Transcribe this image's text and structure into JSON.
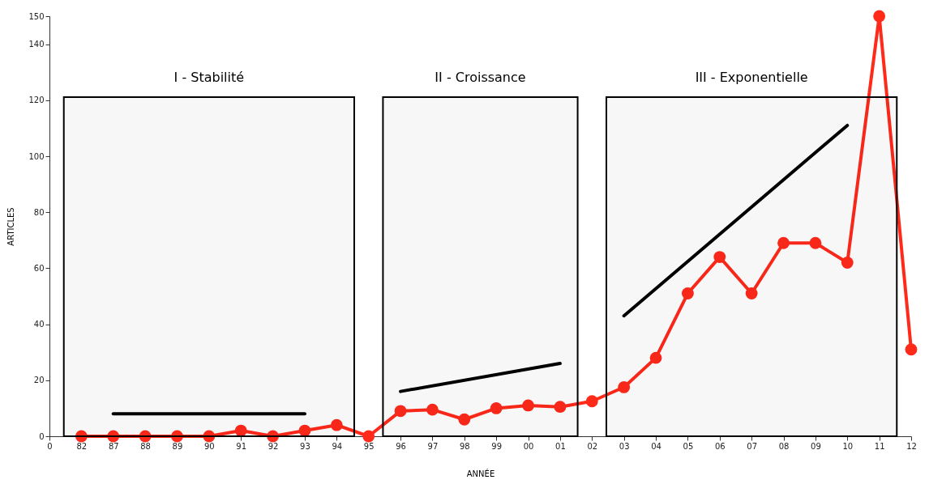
{
  "chart_data": {
    "type": "line",
    "xlabel": "ANNÉE",
    "ylabel": "ARTICLES",
    "categories": [
      "0",
      "82",
      "87",
      "88",
      "89",
      "90",
      "91",
      "92",
      "93",
      "94",
      "95",
      "96",
      "97",
      "98",
      "99",
      "00",
      "01",
      "02",
      "03",
      "04",
      "05",
      "06",
      "07",
      "08",
      "09",
      "10",
      "11",
      "12"
    ],
    "series": [
      {
        "color": "#ff2a1a",
        "marker": "circle",
        "values": [
          null,
          0,
          0,
          0,
          0,
          0,
          2,
          0,
          2,
          4,
          0,
          9,
          9.5,
          6,
          10,
          11,
          10.5,
          12.5,
          17.5,
          28,
          51,
          64,
          51,
          69,
          69,
          62,
          150,
          31
        ]
      },
      {
        "type": "line",
        "color": "#000000",
        "marker": "none",
        "x": [
          "87",
          "93"
        ],
        "values": [
          8,
          8
        ]
      },
      {
        "type": "line",
        "color": "#000000",
        "marker": "none",
        "x": [
          "96",
          "01"
        ],
        "values": [
          16,
          26
        ]
      },
      {
        "type": "line",
        "color": "#000000",
        "marker": "none",
        "x": [
          "03",
          "10"
        ],
        "values": [
          43,
          111
        ]
      }
    ],
    "bands": [
      {
        "axis": "x",
        "from": "82",
        "to": "94",
        "label": "I - Stabilité",
        "color": "#000000"
      },
      {
        "axis": "x",
        "from": "96",
        "to": "01",
        "label": "II - Croissance",
        "color": "#000000"
      },
      {
        "axis": "x",
        "from": "03",
        "to": "11",
        "label": "III - Exponentielle",
        "color": "#000000"
      }
    ],
    "ylim": [
      0,
      150
    ],
    "yticks": [
      0,
      20,
      40,
      60,
      80,
      100,
      120,
      140,
      150
    ],
    "grid": false
  }
}
